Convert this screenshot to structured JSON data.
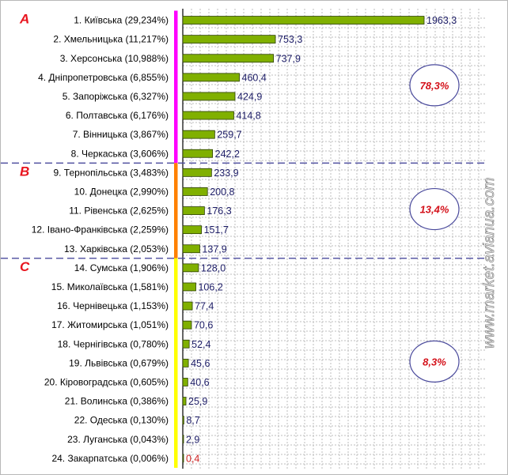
{
  "chart_data": {
    "type": "bar",
    "orientation": "horizontal",
    "grid": true,
    "xlim": [
      0,
      2000
    ],
    "categories": [
      "1. Київська (29,234%)",
      "2. Хмельницька (11,217%)",
      "3. Херсонська (10,988%)",
      "4. Дніпропетровська (6,855%)",
      "5. Запоріжська (6,327%)",
      "6. Полтавська (6,176%)",
      "7. Вінницька (3,867%)",
      "8. Черкаська (3,606%)",
      "9. Тернопільська (3,483%)",
      "10. Донецка (2,990%)",
      "11. Рівенська (2,625%)",
      "12. Івано-Франківська (2,259%)",
      "13. Харківська (2,053%)",
      "14. Сумська (1,906%)",
      "15. Миколаївська (1,581%)",
      "16. Чернівецька (1,153%)",
      "17. Житомирська (1,051%)",
      "18. Чернігівська (0,780%)",
      "19. Львівська (0,679%)",
      "20. Кіровоградська (0,605%)",
      "21. Волинська (0,386%)",
      "22. Одеська (0,130%)",
      "23. Луганська (0,043%)",
      "24. Закарпатська (0,006%)"
    ],
    "values": [
      1963.3,
      753.3,
      737.9,
      460.4,
      424.9,
      414.8,
      259.7,
      242.2,
      233.9,
      200.8,
      176.3,
      151.7,
      137.9,
      128.0,
      106.2,
      77.4,
      70.6,
      52.4,
      45.6,
      40.6,
      25.9,
      8.7,
      2.9,
      0.4
    ],
    "value_labels": [
      "1963,3",
      "753,3",
      "737,9",
      "460,4",
      "424,9",
      "414,8",
      "259,7",
      "242,2",
      "233,9",
      "200,8",
      "176,3",
      "151,7",
      "137,9",
      "128,0",
      "106,2",
      "77,4",
      "70,6",
      "52,4",
      "45,6",
      "40,6",
      "25,9",
      "8,7",
      "2,9",
      "0,4"
    ],
    "groups": [
      {
        "letter": "A",
        "share": "78,3%",
        "from": 0,
        "to": 7,
        "color": "#ff00ff"
      },
      {
        "letter": "B",
        "share": "13,4%",
        "from": 8,
        "to": 12,
        "color": "#ff8000"
      },
      {
        "letter": "C",
        "share": "8,3%",
        "from": 13,
        "to": 23,
        "color": "#ffff00"
      }
    ],
    "colors": {
      "bar_fill": "#80b000",
      "bar_edge": "#2a3d00",
      "value_text": "#1c1c66",
      "value_text_highlight": "#cc2020",
      "grid": "#bdbdbd",
      "separator": "#4a4a9c",
      "share_ellipse": "#4a4a9c"
    }
  },
  "watermark": "www.market.avianua.com"
}
